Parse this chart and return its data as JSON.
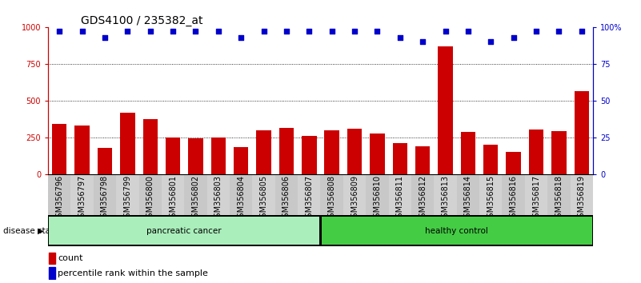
{
  "title": "GDS4100 / 235382_at",
  "samples": [
    "GSM356796",
    "GSM356797",
    "GSM356798",
    "GSM356799",
    "GSM356800",
    "GSM356801",
    "GSM356802",
    "GSM356803",
    "GSM356804",
    "GSM356805",
    "GSM356806",
    "GSM356807",
    "GSM356808",
    "GSM356809",
    "GSM356810",
    "GSM356811",
    "GSM356812",
    "GSM356813",
    "GSM356814",
    "GSM356815",
    "GSM356816",
    "GSM356817",
    "GSM356818",
    "GSM356819"
  ],
  "counts": [
    340,
    330,
    175,
    415,
    375,
    248,
    243,
    248,
    185,
    295,
    315,
    258,
    298,
    307,
    278,
    210,
    190,
    870,
    285,
    200,
    148,
    305,
    290,
    565
  ],
  "percentiles": [
    97,
    97,
    93,
    97,
    97,
    97,
    97,
    97,
    93,
    97,
    97,
    97,
    97,
    97,
    97,
    93,
    90,
    97,
    97,
    90,
    93,
    97,
    97,
    97
  ],
  "bar_color": "#CC0000",
  "dot_color": "#0000CC",
  "ylim_left": [
    0,
    1000
  ],
  "ylim_right": [
    0,
    100
  ],
  "yticks_left": [
    0,
    250,
    500,
    750,
    1000
  ],
  "yticks_right": [
    0,
    25,
    50,
    75,
    100
  ],
  "ytick_labels_left": [
    "0",
    "250",
    "500",
    "750",
    "1000"
  ],
  "ytick_labels_right": [
    "0",
    "25",
    "50",
    "75",
    "100%"
  ],
  "grid_levels": [
    250,
    500,
    750
  ],
  "pc_color": "#AAEEBB",
  "hc_color": "#44CC44",
  "title_fontsize": 10,
  "tick_fontsize": 7,
  "label_fontsize": 8,
  "disease_label_fontsize": 7.5,
  "legend_fontsize": 8
}
